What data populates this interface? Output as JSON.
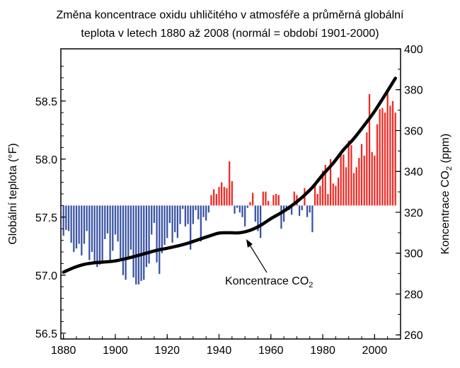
{
  "chart_data": {
    "type": "bar+line",
    "title_lines": [
      "Změna koncentrace oxidu uhličitého v atmosféře a průměrná globální",
      "teplota v letech 1880 až 2008 (normál = období 1901-2000)"
    ],
    "left_axis": {
      "label": "Globální teplota (°F)",
      "min": 56.45,
      "max": 58.95,
      "baseline": 57.6,
      "ticks": [
        "56.5",
        "57.0",
        "57.5",
        "58.0",
        "58.5"
      ]
    },
    "right_axis": {
      "label_main": "Koncentrace CO",
      "label_sub": "2",
      "label_tail": " (ppm)",
      "min": 258,
      "max": 400,
      "ticks": [
        "260",
        "280",
        "300",
        "320",
        "340",
        "360",
        "380",
        "400"
      ]
    },
    "x_axis": {
      "min": 1879,
      "max": 2010,
      "ticks": [
        "1880",
        "1900",
        "1920",
        "1940",
        "1960",
        "1980",
        "2000"
      ]
    },
    "colors": {
      "below": "#3953a4",
      "above": "#ee2a24",
      "line": "#000000"
    },
    "annotation": {
      "text_main": "Koncentrace CO",
      "text_sub": "2"
    },
    "temperature_series": {
      "name": "Globální teplota",
      "years": [
        1880,
        1881,
        1882,
        1883,
        1884,
        1885,
        1886,
        1887,
        1888,
        1889,
        1890,
        1891,
        1892,
        1893,
        1894,
        1895,
        1896,
        1897,
        1898,
        1899,
        1900,
        1901,
        1902,
        1903,
        1904,
        1905,
        1906,
        1907,
        1908,
        1909,
        1910,
        1911,
        1912,
        1913,
        1914,
        1915,
        1916,
        1917,
        1918,
        1919,
        1920,
        1921,
        1922,
        1923,
        1924,
        1925,
        1926,
        1927,
        1928,
        1929,
        1930,
        1931,
        1932,
        1933,
        1934,
        1935,
        1936,
        1937,
        1938,
        1939,
        1940,
        1941,
        1942,
        1943,
        1944,
        1945,
        1946,
        1947,
        1948,
        1949,
        1950,
        1951,
        1952,
        1953,
        1954,
        1955,
        1956,
        1957,
        1958,
        1959,
        1960,
        1961,
        1962,
        1963,
        1964,
        1965,
        1966,
        1967,
        1968,
        1969,
        1970,
        1971,
        1972,
        1973,
        1974,
        1975,
        1976,
        1977,
        1978,
        1979,
        1980,
        1981,
        1982,
        1983,
        1984,
        1985,
        1986,
        1987,
        1988,
        1989,
        1990,
        1991,
        1992,
        1993,
        1994,
        1995,
        1996,
        1997,
        1998,
        1999,
        2000,
        2001,
        2002,
        2003,
        2004,
        2005,
        2006,
        2007,
        2008
      ],
      "values": [
        57.34,
        57.39,
        57.38,
        57.28,
        57.2,
        57.23,
        57.27,
        57.17,
        57.27,
        57.38,
        57.13,
        57.2,
        57.1,
        57.07,
        57.09,
        57.12,
        57.31,
        57.36,
        57.12,
        57.21,
        57.35,
        57.29,
        57.13,
        57.0,
        56.96,
        57.15,
        57.22,
        56.98,
        56.92,
        56.92,
        56.95,
        56.96,
        57.07,
        57.1,
        57.35,
        57.45,
        57.11,
        57.01,
        57.19,
        57.26,
        57.32,
        57.45,
        57.28,
        57.37,
        57.32,
        57.44,
        57.57,
        57.42,
        57.44,
        57.22,
        57.44,
        57.56,
        57.48,
        57.29,
        57.5,
        57.47,
        57.54,
        57.69,
        57.74,
        57.7,
        57.76,
        57.8,
        57.76,
        57.75,
        57.98,
        57.81,
        57.53,
        57.58,
        57.54,
        57.5,
        57.42,
        57.58,
        57.63,
        57.71,
        57.46,
        57.38,
        57.32,
        57.72,
        57.72,
        57.64,
        57.6,
        57.69,
        57.7,
        57.69,
        57.4,
        57.46,
        57.55,
        57.56,
        57.52,
        57.72,
        57.69,
        57.51,
        57.56,
        57.75,
        57.5,
        57.54,
        57.37,
        57.79,
        57.7,
        57.77,
        57.9,
        57.95,
        57.7,
        58.0,
        57.79,
        57.77,
        57.84,
        58.04,
        58.04,
        57.93,
        58.16,
        58.12,
        57.88,
        57.93,
        58.01,
        58.13,
        58.03,
        58.23,
        58.56,
        58.06,
        58.03,
        58.3,
        58.43,
        58.44,
        58.4,
        58.58,
        58.46,
        58.5,
        58.4
      ]
    },
    "co2_series": {
      "name": "Koncentrace CO2",
      "x": [
        1880,
        1884,
        1888,
        1892,
        1896,
        1900,
        1904,
        1908,
        1912,
        1916,
        1920,
        1924,
        1928,
        1932,
        1936,
        1940,
        1944,
        1948,
        1952,
        1956,
        1960,
        1964,
        1968,
        1972,
        1976,
        1980,
        1984,
        1988,
        1992,
        1996,
        2000,
        2004,
        2008
      ],
      "y": [
        290.7,
        292.9,
        294.5,
        295.3,
        295.7,
        296.2,
        297.3,
        298.6,
        300.0,
        301.4,
        302.4,
        303.5,
        304.9,
        306.6,
        308.3,
        309.8,
        310.0,
        310.0,
        311.2,
        313.6,
        316.9,
        319.8,
        323.2,
        327.3,
        332.2,
        338.4,
        344.0,
        350.6,
        356.1,
        362.6,
        369.5,
        377.4,
        385.6
      ]
    }
  }
}
